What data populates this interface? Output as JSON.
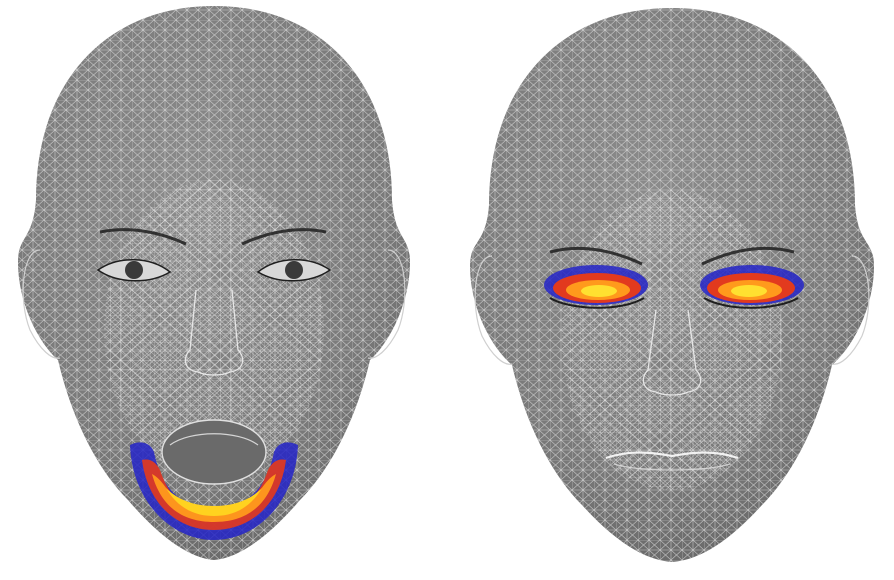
{
  "figure": {
    "panels": [
      {
        "id": "left",
        "subject": "head-mesh-front",
        "state": "mouth-open",
        "highlight_region": "jaw-lower-lip"
      },
      {
        "id": "right",
        "subject": "head-mesh-front",
        "state": "eyes-closed",
        "highlight_region": "eyelids"
      }
    ]
  },
  "colors": {
    "background": "#ffffff",
    "skin": "#7d7d7d",
    "mesh": "#e2e2e2",
    "feature_lines": "#1f1f1f",
    "heat_low": "#2424c8",
    "heat_mid": "#e23a1e",
    "heat_high": "#ffd21f"
  }
}
